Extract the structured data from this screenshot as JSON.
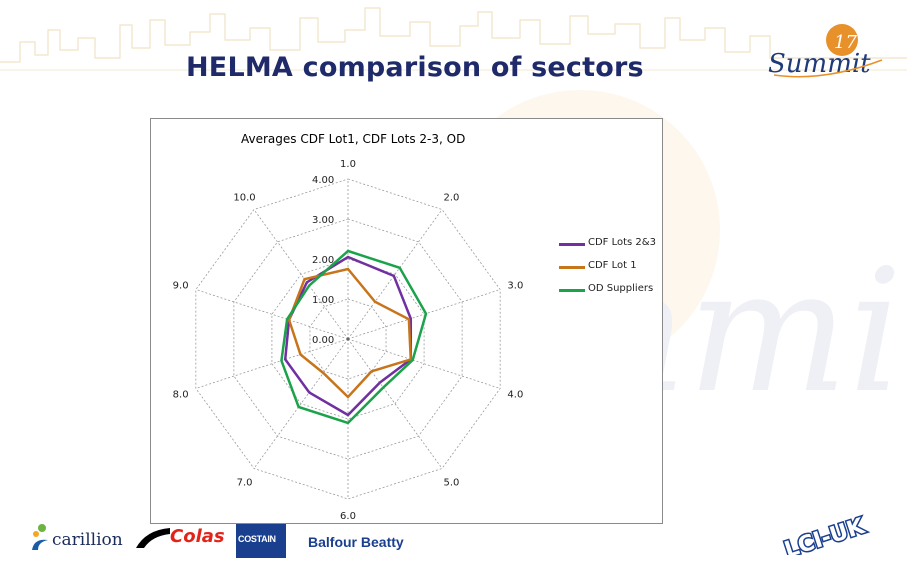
{
  "slide": {
    "title": "HELMA comparison of sectors",
    "summit_logo_word": "Summit",
    "summit_logo_number": "17",
    "watermark_word": "Summit"
  },
  "colors": {
    "title": "#1f2a6b",
    "cdf_lots_2_3": "#7030a0",
    "cdf_lot_1": "#c8741b",
    "od_suppliers": "#1aa34a",
    "grid": "#9a9a9a",
    "summit_orange": "#e8902a",
    "summit_blue": "#1f3a7a"
  },
  "chart_data": {
    "type": "radar",
    "title": "Averages CDF Lot1, CDF Lots 2-3, OD",
    "categories": [
      "1.0",
      "2.0",
      "3.0",
      "4.0",
      "5.0",
      "6.0",
      "7.0",
      "8.0",
      "9.0",
      "10.0"
    ],
    "radial_ticks": [
      "0.00",
      "1.00",
      "2.00",
      "3.00",
      "4.00"
    ],
    "rlim": [
      0,
      4
    ],
    "grid": true,
    "legend_position": "right",
    "series": [
      {
        "name": "CDF Lots 2&3",
        "color": "#7030a0",
        "values": [
          2.05,
          1.95,
          1.65,
          1.65,
          1.35,
          1.9,
          1.65,
          1.65,
          1.55,
          1.75
        ]
      },
      {
        "name": "CDF Lot 1",
        "color": "#c8741b",
        "values": [
          1.75,
          1.15,
          1.6,
          1.65,
          1.0,
          1.45,
          1.05,
          1.25,
          1.55,
          1.85
        ]
      },
      {
        "name": "OD Suppliers",
        "color": "#1aa34a",
        "values": [
          2.2,
          2.2,
          2.05,
          1.7,
          1.5,
          2.1,
          2.1,
          1.75,
          1.6,
          1.65
        ]
      }
    ]
  },
  "logos": {
    "carillion": "carillion",
    "colas": "Colas",
    "costain": "COSTAIN",
    "balfour": "Balfour Beatty",
    "lciuk": "LCI-UK"
  }
}
